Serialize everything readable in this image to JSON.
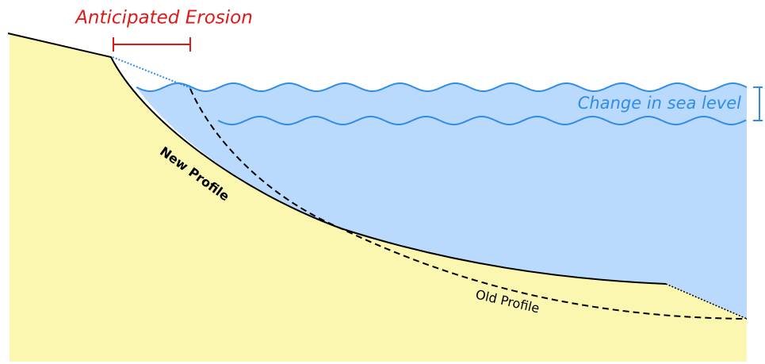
{
  "labels": {
    "erosion": "Anticipated Erosion",
    "sea_level": "Change in sea level",
    "new_profile": "New Profile",
    "old_profile": "Old Profile"
  }
}
